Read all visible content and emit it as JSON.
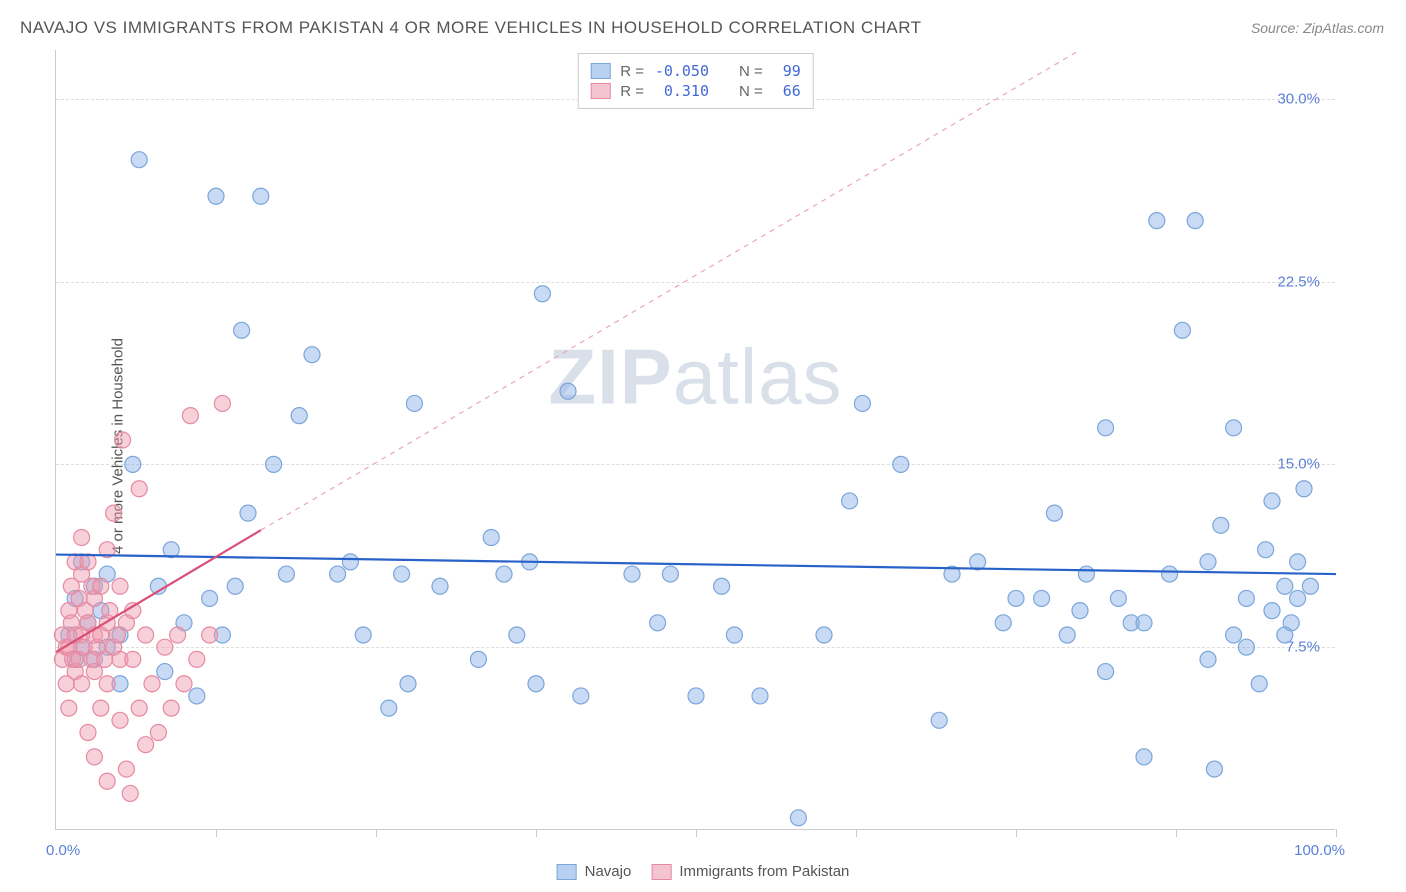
{
  "title": "NAVAJO VS IMMIGRANTS FROM PAKISTAN 4 OR MORE VEHICLES IN HOUSEHOLD CORRELATION CHART",
  "source": "Source: ZipAtlas.com",
  "ylabel": "4 or more Vehicles in Household",
  "watermark_a": "ZIP",
  "watermark_b": "atlas",
  "chart": {
    "type": "scatter",
    "xlim": [
      0,
      100
    ],
    "ylim": [
      0,
      32
    ],
    "xaxis": {
      "min_label": "0.0%",
      "max_label": "100.0%"
    },
    "yticks": [
      {
        "v": 7.5,
        "label": "7.5%"
      },
      {
        "v": 15.0,
        "label": "15.0%"
      },
      {
        "v": 22.5,
        "label": "22.5%"
      },
      {
        "v": 30.0,
        "label": "30.0%"
      }
    ],
    "xticks_minor": [
      12.5,
      25,
      37.5,
      50,
      62.5,
      75,
      87.5,
      100
    ],
    "series": [
      {
        "name": "Navajo",
        "color_fill": "rgba(135,175,230,0.45)",
        "color_stroke": "#7aa6da",
        "swatch_fill": "#b9d1f0",
        "swatch_border": "#7aa6da",
        "r_val": "-0.050",
        "n_val": "99",
        "marker_r": 8,
        "regression": {
          "x1": 0,
          "y1": 11.3,
          "x2": 100,
          "y2": 10.5,
          "stroke": "#2862c9",
          "width": 2.2,
          "dash": ""
        },
        "points": [
          [
            1,
            8
          ],
          [
            1.5,
            9.5
          ],
          [
            1.5,
            7
          ],
          [
            2,
            11
          ],
          [
            2,
            7.5
          ],
          [
            2.5,
            8.5
          ],
          [
            3,
            10
          ],
          [
            3,
            7
          ],
          [
            3.5,
            9
          ],
          [
            4,
            7.5
          ],
          [
            4,
            10.5
          ],
          [
            5,
            6
          ],
          [
            5,
            8
          ],
          [
            6,
            15
          ],
          [
            6.5,
            27.5
          ],
          [
            8,
            10
          ],
          [
            8.5,
            6.5
          ],
          [
            9,
            11.5
          ],
          [
            10,
            8.5
          ],
          [
            11,
            5.5
          ],
          [
            12,
            9.5
          ],
          [
            12.5,
            26
          ],
          [
            13,
            8
          ],
          [
            14,
            10
          ],
          [
            14.5,
            20.5
          ],
          [
            15,
            13
          ],
          [
            16,
            26
          ],
          [
            17,
            15
          ],
          [
            18,
            10.5
          ],
          [
            19,
            17
          ],
          [
            20,
            19.5
          ],
          [
            22,
            10.5
          ],
          [
            23,
            11
          ],
          [
            24,
            8
          ],
          [
            26,
            5
          ],
          [
            27,
            10.5
          ],
          [
            27.5,
            6
          ],
          [
            28,
            17.5
          ],
          [
            30,
            10
          ],
          [
            33,
            7
          ],
          [
            34,
            12
          ],
          [
            35,
            10.5
          ],
          [
            36,
            8
          ],
          [
            37,
            11
          ],
          [
            37.5,
            6
          ],
          [
            38,
            22
          ],
          [
            40,
            18
          ],
          [
            41,
            5.5
          ],
          [
            45,
            10.5
          ],
          [
            47,
            8.5
          ],
          [
            48,
            10.5
          ],
          [
            50,
            5.5
          ],
          [
            52,
            10
          ],
          [
            53,
            8
          ],
          [
            55,
            5.5
          ],
          [
            58,
            0.5
          ],
          [
            60,
            8
          ],
          [
            62,
            13.5
          ],
          [
            63,
            17.5
          ],
          [
            66,
            15
          ],
          [
            69,
            4.5
          ],
          [
            70,
            10.5
          ],
          [
            72,
            11
          ],
          [
            74,
            8.5
          ],
          [
            75,
            9.5
          ],
          [
            77,
            9.5
          ],
          [
            78,
            13
          ],
          [
            79,
            8
          ],
          [
            80,
            9
          ],
          [
            80.5,
            10.5
          ],
          [
            82,
            6.5
          ],
          [
            82,
            16.5
          ],
          [
            83,
            9.5
          ],
          [
            84,
            8.5
          ],
          [
            85,
            8.5
          ],
          [
            85,
            3
          ],
          [
            86,
            25
          ],
          [
            87,
            10.5
          ],
          [
            88,
            20.5
          ],
          [
            89,
            25
          ],
          [
            90,
            11
          ],
          [
            90,
            7
          ],
          [
            90.5,
            2.5
          ],
          [
            91,
            12.5
          ],
          [
            92,
            16.5
          ],
          [
            92,
            8
          ],
          [
            93,
            9.5
          ],
          [
            93,
            7.5
          ],
          [
            94,
            6
          ],
          [
            94.5,
            11.5
          ],
          [
            95,
            13.5
          ],
          [
            95,
            9
          ],
          [
            96,
            8
          ],
          [
            96,
            10
          ],
          [
            96.5,
            8.5
          ],
          [
            97,
            9.5
          ],
          [
            97,
            11
          ],
          [
            97.5,
            14
          ],
          [
            98,
            10
          ]
        ]
      },
      {
        "name": "Immigrants from Pakistan",
        "color_fill": "rgba(240,150,170,0.45)",
        "color_stroke": "#e68aa3",
        "swatch_fill": "#f5c4d1",
        "swatch_border": "#e68aa3",
        "r_val": "0.310",
        "n_val": "66",
        "marker_r": 8,
        "regression": {
          "x1": 0,
          "y1": 7.3,
          "x2": 16,
          "y2": 12.3,
          "stroke": "#d94f78",
          "width": 2.2,
          "dash": ""
        },
        "regression_ext": {
          "x1": 16,
          "y1": 12.3,
          "x2": 80,
          "y2": 32,
          "stroke": "#e9a6ba",
          "width": 1.2,
          "dash": "5,5"
        },
        "points": [
          [
            0.5,
            7
          ],
          [
            0.5,
            8
          ],
          [
            0.8,
            7.5
          ],
          [
            0.8,
            6
          ],
          [
            1,
            9
          ],
          [
            1,
            7.5
          ],
          [
            1,
            5
          ],
          [
            1.2,
            8.5
          ],
          [
            1.2,
            10
          ],
          [
            1.3,
            7
          ],
          [
            1.5,
            11
          ],
          [
            1.5,
            6.5
          ],
          [
            1.5,
            8
          ],
          [
            1.8,
            9.5
          ],
          [
            1.8,
            7
          ],
          [
            2,
            8
          ],
          [
            2,
            10.5
          ],
          [
            2,
            12
          ],
          [
            2,
            6
          ],
          [
            2.2,
            7.5
          ],
          [
            2.3,
            9
          ],
          [
            2.5,
            8.5
          ],
          [
            2.5,
            4
          ],
          [
            2.5,
            11
          ],
          [
            2.8,
            7
          ],
          [
            2.8,
            10
          ],
          [
            3,
            8
          ],
          [
            3,
            9.5
          ],
          [
            3,
            6.5
          ],
          [
            3,
            3
          ],
          [
            3.2,
            7.5
          ],
          [
            3.5,
            8
          ],
          [
            3.5,
            5
          ],
          [
            3.5,
            10
          ],
          [
            3.8,
            7
          ],
          [
            4,
            8.5
          ],
          [
            4,
            11.5
          ],
          [
            4,
            6
          ],
          [
            4,
            2
          ],
          [
            4.2,
            9
          ],
          [
            4.5,
            7.5
          ],
          [
            4.5,
            13
          ],
          [
            4.8,
            8
          ],
          [
            5,
            4.5
          ],
          [
            5,
            10
          ],
          [
            5,
            7
          ],
          [
            5.2,
            16
          ],
          [
            5.5,
            2.5
          ],
          [
            5.5,
            8.5
          ],
          [
            5.8,
            1.5
          ],
          [
            6,
            7
          ],
          [
            6,
            9
          ],
          [
            6.5,
            5
          ],
          [
            6.5,
            14
          ],
          [
            7,
            3.5
          ],
          [
            7,
            8
          ],
          [
            7.5,
            6
          ],
          [
            8,
            4
          ],
          [
            8.5,
            7.5
          ],
          [
            9,
            5
          ],
          [
            9.5,
            8
          ],
          [
            10,
            6
          ],
          [
            10.5,
            17
          ],
          [
            11,
            7
          ],
          [
            12,
            8
          ],
          [
            13,
            17.5
          ]
        ]
      }
    ]
  },
  "bottom_legend": [
    {
      "label": "Navajo",
      "fill": "#b9d1f0",
      "border": "#7aa6da"
    },
    {
      "label": "Immigrants from Pakistan",
      "fill": "#f5c4d1",
      "border": "#e68aa3"
    }
  ]
}
